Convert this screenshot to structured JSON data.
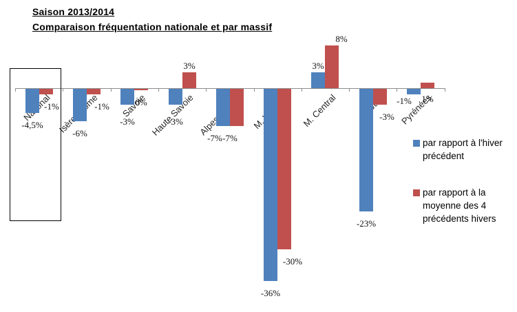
{
  "title": {
    "line1": "Saison 2013/2014",
    "line2": "Comparaison fréquentation nationale et par massif"
  },
  "chart_data": {
    "type": "bar",
    "title": "Saison 2013/2014 — Comparaison fréquentation nationale et par massif",
    "unit": "%",
    "categories": [
      "National",
      "Isère-Drôme",
      "Savoie",
      "Haute Savoie",
      "Alpes du Sud",
      "M. Vosgien",
      "M. Central",
      "Jura",
      "Pyrénées"
    ],
    "series": [
      {
        "name": "par rapport  à l'hiver précédent",
        "color": "#4F81BD",
        "values": [
          -4.5,
          -6,
          -3,
          -3,
          -7,
          -36,
          3,
          -23,
          -1
        ],
        "labels": [
          "-4,5%",
          "-6%",
          "-3%",
          "-3%",
          "-7%",
          "-36%",
          "3%",
          "-23%",
          "-1%"
        ]
      },
      {
        "name": "par rapport  à la moyenne des 4 précédents hivers",
        "color": "#C0504D",
        "values": [
          -1,
          -1,
          0,
          3,
          -7,
          -30,
          8,
          -3,
          1
        ],
        "labels": [
          "-1%",
          "-1%",
          "0%",
          "3%",
          "-7%",
          "-30%",
          "8%",
          "-3%",
          "1%"
        ]
      }
    ],
    "ylim": [
      -40,
      10
    ],
    "grid": false,
    "legend_position": "right",
    "annotations": [
      "rectangle drawn around the National category"
    ]
  },
  "legend": {
    "items": [
      {
        "label": "par rapport  à l'hiver précédent",
        "color": "#4F81BD"
      },
      {
        "label": "par rapport  à la moyenne des 4 précédents hivers",
        "color": "#C0504D"
      }
    ]
  }
}
